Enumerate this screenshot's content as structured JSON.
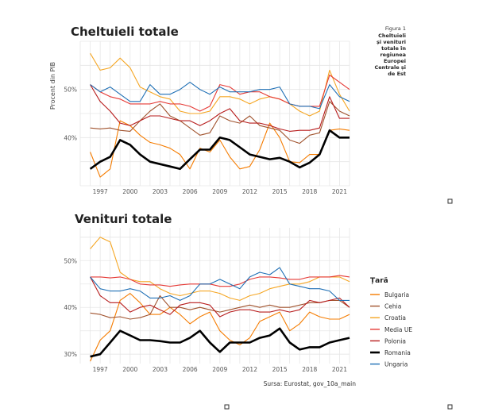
{
  "caption": {
    "label": "Figura 1",
    "lines": [
      "Cheltuieli",
      "și venituri",
      "totale în",
      "regiunea",
      "Europei",
      "Centrale și",
      "de Est"
    ]
  },
  "source": "Sursa: Eurostat, gov_10a_main",
  "legend": {
    "title": "Țară",
    "entries": [
      {
        "name": "Bulgaria",
        "color": "#f57c00"
      },
      {
        "name": "Cehia",
        "color": "#a0522d"
      },
      {
        "name": "Croatia",
        "color": "#f5a623"
      },
      {
        "name": "Media UE",
        "color": "#e53935"
      },
      {
        "name": "Polonia",
        "color": "#b71c1c"
      },
      {
        "name": "Romania",
        "color": "#000000"
      },
      {
        "name": "Ungaria",
        "color": "#1e6fb5"
      }
    ]
  },
  "chart_data": [
    {
      "type": "line",
      "title": "Cheltuieli totale",
      "ylabel": "Procent din PIB",
      "xlabel": "",
      "ylim": [
        30,
        60
      ],
      "xlim": [
        1995,
        2022
      ],
      "x_ticks": [
        1997,
        2000,
        2003,
        2006,
        2009,
        2012,
        2015,
        2018,
        2021
      ],
      "y_ticks": [
        40,
        50
      ],
      "y_tick_labels": [
        "40%",
        "50%"
      ],
      "x": [
        1995,
        1996,
        1997,
        1998,
        1999,
        2000,
        2001,
        2002,
        2003,
        2004,
        2005,
        2006,
        2007,
        2008,
        2009,
        2010,
        2011,
        2012,
        2013,
        2014,
        2015,
        2016,
        2017,
        2018,
        2019,
        2020,
        2021,
        2022
      ],
      "series": [
        {
          "name": "Bulgaria",
          "values": [
            null,
            37.0,
            31.8,
            33.5,
            43.5,
            42.5,
            40.5,
            39.0,
            38.5,
            37.8,
            36.5,
            33.5,
            37.8,
            37.0,
            39.5,
            36.0,
            33.5,
            34.0,
            37.5,
            43.0,
            40.0,
            35.0,
            34.8,
            36.5,
            36.5,
            41.5,
            41.8,
            41.5
          ]
        },
        {
          "name": "Cehia",
          "values": [
            null,
            42.0,
            41.8,
            42.0,
            41.5,
            41.3,
            43.5,
            45.5,
            47.0,
            44.5,
            43.5,
            42.0,
            40.5,
            41.0,
            44.5,
            43.5,
            43.0,
            44.5,
            42.5,
            42.0,
            41.5,
            39.5,
            38.8,
            40.5,
            41.0,
            47.5,
            45.5,
            44.5
          ]
        },
        {
          "name": "Croatia",
          "values": [
            null,
            57.5,
            54.0,
            54.5,
            56.5,
            54.5,
            50.5,
            49.5,
            48.5,
            48.0,
            45.5,
            45.0,
            45.0,
            45.5,
            48.5,
            48.5,
            48.0,
            47.0,
            48.0,
            48.5,
            48.0,
            47.0,
            45.5,
            44.5,
            45.5,
            54.0,
            49.0,
            45.5
          ]
        },
        {
          "name": "Media UE",
          "values": [
            null,
            51.0,
            49.5,
            48.5,
            48.0,
            47.0,
            47.0,
            47.0,
            47.5,
            47.0,
            47.0,
            46.5,
            45.5,
            46.5,
            51.0,
            50.5,
            49.0,
            49.5,
            49.5,
            48.5,
            48.0,
            47.0,
            46.5,
            46.5,
            46.5,
            53.0,
            51.5,
            50.0
          ]
        },
        {
          "name": "Polonia",
          "values": [
            null,
            51.0,
            47.5,
            45.5,
            43.0,
            42.5,
            43.5,
            44.5,
            44.5,
            44.0,
            43.5,
            43.5,
            42.5,
            43.5,
            45.0,
            46.0,
            43.5,
            43.0,
            43.0,
            42.5,
            41.8,
            41.3,
            41.5,
            41.5,
            42.0,
            48.5,
            44.0,
            44.0
          ]
        },
        {
          "name": "Romania",
          "values": [
            null,
            33.5,
            35.0,
            36.0,
            39.5,
            38.5,
            36.5,
            35.0,
            34.5,
            34.0,
            33.5,
            35.5,
            37.5,
            37.5,
            40.0,
            39.5,
            38.0,
            36.5,
            36.0,
            35.5,
            35.8,
            35.0,
            33.8,
            34.8,
            36.5,
            41.5,
            40.0,
            40.0
          ]
        },
        {
          "name": "Ungaria",
          "values": [
            null,
            51.0,
            49.5,
            50.5,
            49.0,
            47.5,
            47.5,
            51.0,
            49.0,
            49.0,
            50.0,
            51.5,
            50.0,
            49.0,
            50.5,
            49.5,
            49.5,
            49.5,
            50.0,
            50.0,
            50.5,
            47.0,
            46.5,
            46.5,
            46.0,
            51.0,
            48.5,
            47.5
          ]
        }
      ]
    },
    {
      "type": "line",
      "title": "Venituri totale",
      "ylabel": "",
      "xlabel": "",
      "ylim": [
        28,
        57
      ],
      "xlim": [
        1995,
        2022
      ],
      "x_ticks": [
        1997,
        2000,
        2003,
        2006,
        2009,
        2012,
        2015,
        2018,
        2021
      ],
      "y_ticks": [
        30,
        40,
        50
      ],
      "y_tick_labels": [
        "30%",
        "40%",
        "50%"
      ],
      "x": [
        1995,
        1996,
        1997,
        1998,
        1999,
        2000,
        2001,
        2002,
        2003,
        2004,
        2005,
        2006,
        2007,
        2008,
        2009,
        2010,
        2011,
        2012,
        2013,
        2014,
        2015,
        2016,
        2017,
        2018,
        2019,
        2020,
        2021,
        2022
      ],
      "series": [
        {
          "name": "Bulgaria",
          "values": [
            null,
            28.5,
            33.0,
            35.0,
            41.5,
            43.0,
            41.0,
            38.5,
            38.5,
            40.0,
            38.5,
            36.5,
            38.0,
            39.0,
            35.0,
            33.0,
            32.0,
            33.5,
            37.0,
            38.0,
            39.0,
            35.0,
            36.5,
            39.0,
            38.0,
            37.5,
            37.5,
            38.5
          ]
        },
        {
          "name": "Cehia",
          "values": [
            null,
            38.8,
            38.5,
            37.8,
            38.0,
            37.5,
            37.8,
            38.5,
            42.5,
            40.0,
            40.0,
            39.5,
            40.0,
            39.5,
            39.0,
            39.5,
            40.0,
            40.5,
            40.0,
            40.5,
            40.0,
            40.0,
            40.5,
            41.0,
            41.0,
            41.5,
            41.5,
            40.0
          ]
        },
        {
          "name": "Croatia",
          "values": [
            null,
            52.5,
            55.0,
            54.0,
            47.5,
            46.0,
            45.5,
            45.5,
            44.0,
            43.0,
            42.5,
            43.0,
            43.5,
            43.5,
            43.0,
            42.0,
            41.5,
            42.5,
            43.0,
            44.0,
            44.5,
            45.0,
            45.0,
            45.5,
            46.5,
            46.5,
            46.5,
            45.5
          ]
        },
        {
          "name": "Media UE",
          "values": [
            null,
            46.5,
            46.5,
            46.3,
            46.5,
            46.0,
            45.0,
            44.8,
            44.8,
            44.5,
            44.8,
            45.0,
            45.0,
            45.0,
            44.5,
            44.5,
            45.0,
            46.0,
            46.5,
            46.5,
            46.3,
            46.0,
            46.0,
            46.5,
            46.5,
            46.5,
            46.8,
            46.5
          ]
        },
        {
          "name": "Polonia",
          "values": [
            null,
            46.5,
            42.5,
            41.0,
            41.0,
            39.0,
            40.0,
            40.5,
            39.5,
            38.5,
            40.5,
            41.0,
            41.0,
            40.5,
            38.0,
            39.0,
            39.5,
            39.5,
            39.0,
            39.0,
            39.5,
            39.0,
            39.5,
            41.5,
            41.0,
            41.5,
            42.0,
            40.0
          ]
        },
        {
          "name": "Romania",
          "values": [
            null,
            29.5,
            30.0,
            32.5,
            35.0,
            34.0,
            33.0,
            33.0,
            32.8,
            32.5,
            32.5,
            33.5,
            35.0,
            32.5,
            30.5,
            32.5,
            32.5,
            32.5,
            33.5,
            34.0,
            35.5,
            32.5,
            31.0,
            31.5,
            31.5,
            32.5,
            33.0,
            33.5
          ]
        },
        {
          "name": "Ungaria",
          "values": [
            null,
            46.5,
            44.0,
            43.5,
            43.5,
            44.0,
            43.5,
            42.0,
            42.0,
            42.5,
            41.5,
            42.5,
            45.0,
            45.0,
            46.0,
            45.0,
            44.0,
            46.5,
            47.5,
            47.0,
            48.5,
            45.0,
            44.5,
            44.0,
            44.0,
            43.5,
            41.5,
            41.5
          ]
        }
      ]
    }
  ]
}
